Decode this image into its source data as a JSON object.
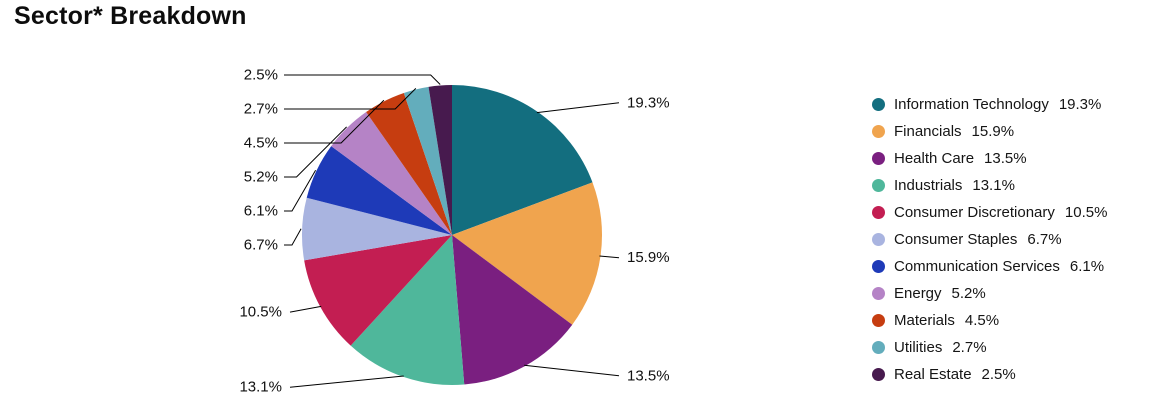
{
  "title": "Sector* Breakdown",
  "chart_data": {
    "type": "pie",
    "title": "Sector* Breakdown",
    "start_angle_deg": 0,
    "direction": "clockwise",
    "legend_position": "right",
    "value_suffix": "%",
    "slices": [
      {
        "label": "Information Technology",
        "value": 19.3,
        "color": "#136e7f"
      },
      {
        "label": "Financials",
        "value": 15.9,
        "color": "#f0a44e"
      },
      {
        "label": "Health Care",
        "value": 13.5,
        "color": "#7a1f80"
      },
      {
        "label": "Industrials",
        "value": 13.1,
        "color": "#4fb79b"
      },
      {
        "label": "Consumer Discretionary",
        "value": 10.5,
        "color": "#c31e52"
      },
      {
        "label": "Consumer Staples",
        "value": 6.7,
        "color": "#a9b4e0"
      },
      {
        "label": "Communication Services",
        "value": 6.1,
        "color": "#1e3ab8"
      },
      {
        "label": "Energy",
        "value": 5.2,
        "color": "#b583c6"
      },
      {
        "label": "Materials",
        "value": 4.5,
        "color": "#c63d10"
      },
      {
        "label": "Utilities",
        "value": 2.7,
        "color": "#63adbc"
      },
      {
        "label": "Real Estate",
        "value": 2.5,
        "color": "#471a4e"
      }
    ]
  }
}
